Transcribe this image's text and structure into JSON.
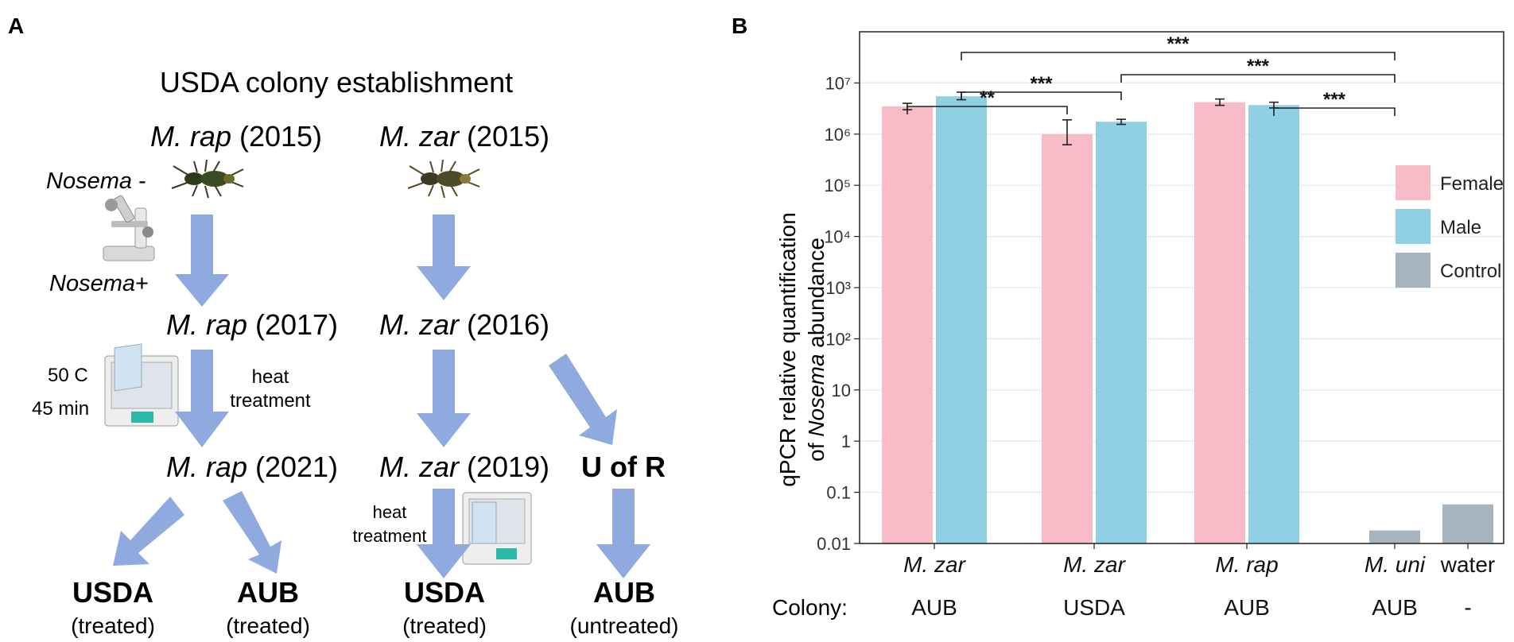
{
  "panel_a": {
    "label": "A",
    "title": "USDA colony establishment",
    "rap_2015_species": "M. rap",
    "rap_2015_year": "(2015)",
    "zar_2015_species": "M. zar",
    "zar_2015_year": "(2015)",
    "nosema_minus_word": "Nosema",
    "nosema_minus_sign": "-",
    "nosema_plus_word": "Nosema",
    "nosema_plus_sign": "+",
    "rap_2017_species": "M. rap",
    "rap_2017_year": "(2017)",
    "zar_2016_species": "M. zar",
    "zar_2016_year": "(2016)",
    "temp": "50 C",
    "duration": "45 min",
    "heat_line1": "heat",
    "heat_line2": "treatment",
    "rap_2021_species": "M. rap",
    "rap_2021_year": "(2021)",
    "zar_2019_species": "M. zar",
    "zar_2019_year": "(2019)",
    "u_of_r": "U of R",
    "heat2_line1": "heat",
    "heat2_line2": "treatment",
    "out1_name": "USDA",
    "out1_status": "(treated)",
    "out2_name": "AUB",
    "out2_status": "(treated)",
    "out3_name": "USDA",
    "out3_status": "(treated)",
    "out4_name": "AUB",
    "out4_status": "(untreated)"
  },
  "panel_b": {
    "label": "B",
    "colony_label": "Colony:"
  },
  "chart_data": {
    "type": "bar",
    "ylabel_line1": "qPCR relative quantification",
    "ylabel_line2_prefix": "of ",
    "ylabel_line2_italic": "Nosema",
    "ylabel_line2_suffix": " abundance",
    "yscale": "log",
    "ylim": [
      0.01,
      100000000
    ],
    "yticks": [
      {
        "value": 0.01,
        "label": "0.01"
      },
      {
        "value": 0.1,
        "label": "0.1"
      },
      {
        "value": 1,
        "label": "1"
      },
      {
        "value": 10,
        "label": "10"
      },
      {
        "value": 100,
        "label": "10²"
      },
      {
        "value": 1000,
        "label": "10³"
      },
      {
        "value": 10000,
        "label": "10⁴"
      },
      {
        "value": 100000,
        "label": "10⁵"
      },
      {
        "value": 1000000,
        "label": "10⁶"
      },
      {
        "value": 10000000,
        "label": "10⁷"
      }
    ],
    "groups": [
      {
        "species": "M. zar",
        "colony": "AUB",
        "bars": [
          {
            "series": "Female",
            "value": 3500000,
            "err_low": 3000000,
            "err_high": 4000000
          },
          {
            "series": "Male",
            "value": 5500000,
            "err_low": 4700000,
            "err_high": 6600000
          }
        ]
      },
      {
        "species": "M. zar",
        "colony": "USDA",
        "bars": [
          {
            "series": "Female",
            "value": 1000000,
            "err_low": 620000,
            "err_high": 1900000
          },
          {
            "series": "Male",
            "value": 1750000,
            "err_low": 1550000,
            "err_high": 1950000
          }
        ]
      },
      {
        "species": "M. rap",
        "colony": "AUB",
        "bars": [
          {
            "series": "Female",
            "value": 4200000,
            "err_low": 3650000,
            "err_high": 4850000
          },
          {
            "series": "Male",
            "value": 3700000,
            "err_low": 3250000,
            "err_high": 4200000
          }
        ]
      },
      {
        "species": "M. uni",
        "colony": "AUB",
        "bars": [
          {
            "series": "Control",
            "value": 0.018
          }
        ]
      },
      {
        "species": "water",
        "colony": "-",
        "bars": [
          {
            "series": "Control",
            "value": 0.058
          }
        ]
      }
    ],
    "legend": [
      {
        "name": "Female",
        "color": "#f7bcc8"
      },
      {
        "name": "Male",
        "color": "#8fd0e4"
      },
      {
        "name": "Control",
        "color": "#a7b3be"
      }
    ],
    "legend_position": "right",
    "significance": [
      {
        "from": "M. zar AUB Male",
        "to": "M. uni AUB",
        "label": "***"
      },
      {
        "from": "M. zar USDA Male",
        "to": "M. uni AUB",
        "label": "***"
      },
      {
        "from": "M. zar AUB Female",
        "to": "M. zar USDA Female",
        "label": "**"
      },
      {
        "from": "M. zar AUB Male",
        "to": "M. zar USDA Male",
        "label": "***"
      },
      {
        "from": "M. rap AUB Male",
        "to": "M. uni AUB",
        "label": "***"
      }
    ],
    "grid": true
  }
}
